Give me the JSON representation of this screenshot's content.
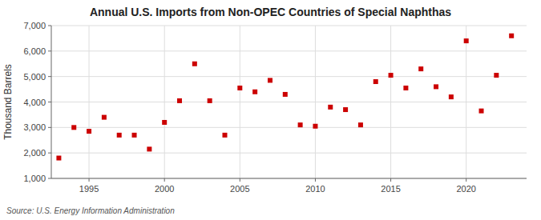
{
  "chart_data": {
    "type": "scatter",
    "title": "Annual U.S. Imports from Non-OPEC Countries of Special Naphthas",
    "ylabel": "Thousand Barrels",
    "annotations": [
      "Source: U.S. Energy Information Administration"
    ],
    "x": [
      1993,
      1994,
      1995,
      1996,
      1997,
      1998,
      1999,
      2000,
      2001,
      2002,
      2003,
      2004,
      2005,
      2006,
      2007,
      2008,
      2009,
      2010,
      2011,
      2012,
      2013,
      2014,
      2015,
      2016,
      2017,
      2018,
      2019,
      2020,
      2021,
      2022,
      2023
    ],
    "values": [
      1800,
      3000,
      2850,
      3400,
      2700,
      2700,
      2150,
      3200,
      4050,
      5500,
      4050,
      2700,
      4550,
      4400,
      4850,
      4300,
      3100,
      3050,
      3800,
      3700,
      3100,
      4800,
      5050,
      4550,
      5300,
      4600,
      4200,
      6400,
      3650,
      5050,
      6600
    ],
    "color": "#cc0000",
    "marker": "square",
    "xlim": [
      1992.5,
      2024
    ],
    "xticks": [
      1995,
      2000,
      2005,
      2010,
      2015,
      2020
    ],
    "ylim": [
      1000,
      7000
    ],
    "yticks": [
      {
        "value": 1000,
        "label": "1,000"
      },
      {
        "value": 2000,
        "label": "2,000"
      },
      {
        "value": 3000,
        "label": "3,000"
      },
      {
        "value": 4000,
        "label": "4,000"
      },
      {
        "value": 5000,
        "label": "5,000"
      },
      {
        "value": 6000,
        "label": "6,000"
      },
      {
        "value": 7000,
        "label": "7,000"
      }
    ],
    "grid": true
  }
}
